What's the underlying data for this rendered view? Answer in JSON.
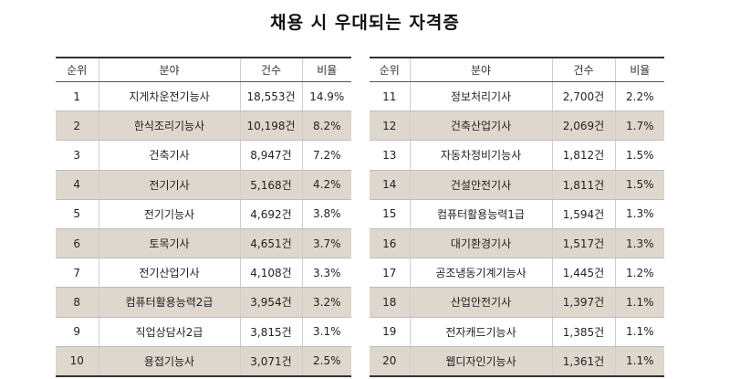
{
  "title": "채용 시 우대되는 자격증",
  "headers": {
    "rank": "순위",
    "field": "분야",
    "count": "건수",
    "ratio": "비율"
  },
  "left_rows": [
    {
      "rank": "1",
      "field": "지게차운전기능사",
      "count": "18,553건",
      "ratio": "14.9%"
    },
    {
      "rank": "2",
      "field": "한식조리기능사",
      "count": "10,198건",
      "ratio": "8.2%"
    },
    {
      "rank": "3",
      "field": "건축기사",
      "count": "8,947건",
      "ratio": "7.2%"
    },
    {
      "rank": "4",
      "field": "전기기사",
      "count": "5,168건",
      "ratio": "4.2%"
    },
    {
      "rank": "5",
      "field": "전기기능사",
      "count": "4,692건",
      "ratio": "3.8%"
    },
    {
      "rank": "6",
      "field": "토목기사",
      "count": "4,651건",
      "ratio": "3.7%"
    },
    {
      "rank": "7",
      "field": "전기산업기사",
      "count": "4,108건",
      "ratio": "3.3%"
    },
    {
      "rank": "8",
      "field": "컴퓨터활용능력2급",
      "count": "3,954건",
      "ratio": "3.2%"
    },
    {
      "rank": "9",
      "field": "직업상담사2급",
      "count": "3,815건",
      "ratio": "3.1%"
    },
    {
      "rank": "10",
      "field": "용접기능사",
      "count": "3,071건",
      "ratio": "2.5%"
    }
  ],
  "right_rows": [
    {
      "rank": "11",
      "field": "정보처리기사",
      "count": "2,700건",
      "ratio": "2.2%"
    },
    {
      "rank": "12",
      "field": "건축산업기사",
      "count": "2,069건",
      "ratio": "1.7%"
    },
    {
      "rank": "13",
      "field": "자동차정비기능사",
      "count": "1,812건",
      "ratio": "1.5%"
    },
    {
      "rank": "14",
      "field": "건설안전기사",
      "count": "1,811건",
      "ratio": "1.5%"
    },
    {
      "rank": "15",
      "field": "컴퓨터활용능력1급",
      "count": "1,594건",
      "ratio": "1.3%"
    },
    {
      "rank": "16",
      "field": "대기환경기사",
      "count": "1,517건",
      "ratio": "1.3%"
    },
    {
      "rank": "17",
      "field": "공조냉동기계기능사",
      "count": "1,445건",
      "ratio": "1.2%"
    },
    {
      "rank": "18",
      "field": "산업안전기사",
      "count": "1,397건",
      "ratio": "1.1%"
    },
    {
      "rank": "19",
      "field": "전자캐드기능사",
      "count": "1,385건",
      "ratio": "1.1%"
    },
    {
      "rank": "20",
      "field": "웹디자인기능사",
      "count": "1,361건",
      "ratio": "1.1%"
    }
  ],
  "colors": {
    "shaded_row": "#ded7cd",
    "rule": "#333333"
  }
}
